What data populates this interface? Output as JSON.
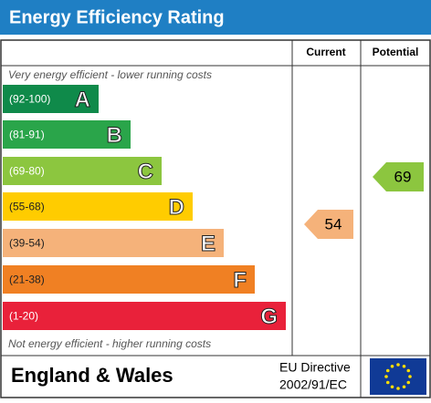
{
  "header": {
    "title": "Energy Efficiency Rating"
  },
  "columns": {
    "current": "Current",
    "potential": "Potential"
  },
  "top_note": "Very energy efficient - lower running costs",
  "bottom_note": "Not energy efficient - higher running costs",
  "bands": [
    {
      "range": "(92-100)",
      "letter": "A",
      "color": "#0f8a4a"
    },
    {
      "range": "(81-91)",
      "letter": "B",
      "color": "#2aa54a"
    },
    {
      "range": "(69-80)",
      "letter": "C",
      "color": "#8cc63f"
    },
    {
      "range": "(55-68)",
      "letter": "D",
      "color": "#ffcc00"
    },
    {
      "range": "(39-54)",
      "letter": "E",
      "color": "#f5b27a"
    },
    {
      "range": "(21-38)",
      "letter": "F",
      "color": "#f08023"
    },
    {
      "range": "(1-20)",
      "letter": "G",
      "color": "#e9213a"
    }
  ],
  "current": {
    "value": "54",
    "color": "#f5b27a"
  },
  "potential": {
    "value": "69",
    "color": "#8cc63f"
  },
  "footer": {
    "region": "England & Wales",
    "directive_line1": "EU Directive",
    "directive_line2": "2002/91/EC"
  }
}
